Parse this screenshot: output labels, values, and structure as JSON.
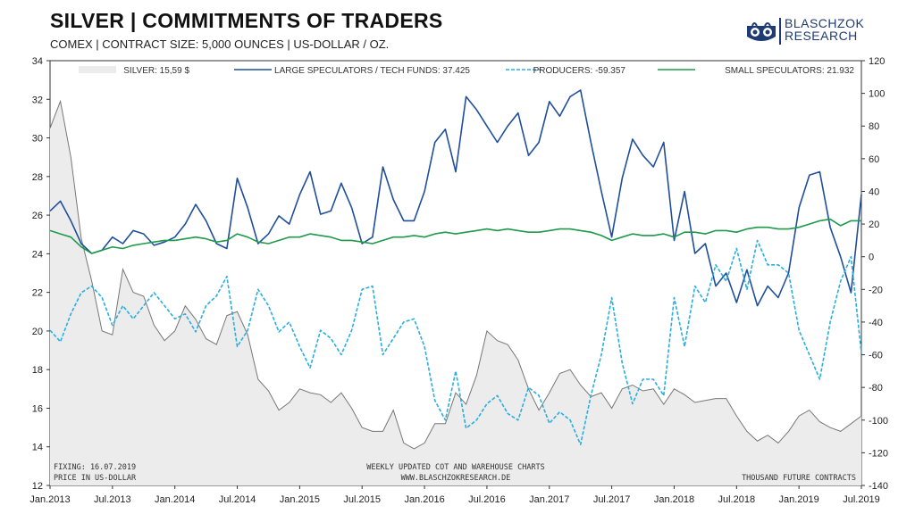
{
  "header": {
    "title": "SILVER | COMMITMENTS OF TRADERS",
    "subtitle": "COMEX | CONTRACT SIZE: 5,000 OUNCES | US-DOLLAR / OZ."
  },
  "logo": {
    "line1": "BLASCHZOK",
    "line2": "RESEARCH",
    "icon": "lion-crest-icon"
  },
  "notes": {
    "fixing": "FIXING: 16.07.2019",
    "price_unit": "PRICE IN US-DOLLAR",
    "weekly": "WEEKLY UPDATED COT AND WAREHOUSE CHARTS",
    "website": "WWW.BLASCHZOKRESEARCH.DE",
    "contracts": "THOUSAND FUTURE CONTRACTS"
  },
  "chart_data": {
    "type": "line",
    "legend_position": "top",
    "grid": false,
    "x_labels": [
      "Jan.2013",
      "Jul.2013",
      "Jan.2014",
      "Jul.2014",
      "Jan.2015",
      "Jul.2015",
      "Jan.2016",
      "Jul.2016",
      "Jan.2017",
      "Jul.2017",
      "Jan.2018",
      "Jul.2018",
      "Jan.2019",
      "Jul.2019"
    ],
    "x_range": [
      "2013-01",
      "2019-07"
    ],
    "y_left": {
      "range": [
        12,
        34
      ],
      "ticks": [
        12,
        14,
        16,
        18,
        20,
        22,
        24,
        26,
        28,
        30,
        32,
        34
      ]
    },
    "y_right": {
      "range": [
        -140,
        120
      ],
      "ticks": [
        -140,
        -120,
        -100,
        -80,
        -60,
        -40,
        -20,
        0,
        20,
        40,
        60,
        80,
        100,
        120
      ]
    },
    "series": [
      {
        "name": "SILVER: 15,59 $",
        "axis": "left",
        "style": "area",
        "color": "#777777",
        "fill": "#ececec",
        "x": [
          "2013-01",
          "2013-02",
          "2013-03",
          "2013-04",
          "2013-05",
          "2013-06",
          "2013-07",
          "2013-08",
          "2013-09",
          "2013-10",
          "2013-11",
          "2013-12",
          "2014-01",
          "2014-02",
          "2014-03",
          "2014-04",
          "2014-05",
          "2014-06",
          "2014-07",
          "2014-08",
          "2014-09",
          "2014-10",
          "2014-11",
          "2014-12",
          "2015-01",
          "2015-02",
          "2015-03",
          "2015-04",
          "2015-05",
          "2015-06",
          "2015-07",
          "2015-08",
          "2015-09",
          "2015-10",
          "2015-11",
          "2015-12",
          "2016-01",
          "2016-02",
          "2016-03",
          "2016-04",
          "2016-05",
          "2016-06",
          "2016-07",
          "2016-08",
          "2016-09",
          "2016-10",
          "2016-11",
          "2016-12",
          "2017-01",
          "2017-02",
          "2017-03",
          "2017-04",
          "2017-05",
          "2017-06",
          "2017-07",
          "2017-08",
          "2017-09",
          "2017-10",
          "2017-11",
          "2017-12",
          "2018-01",
          "2018-02",
          "2018-03",
          "2018-04",
          "2018-05",
          "2018-06",
          "2018-07",
          "2018-08",
          "2018-09",
          "2018-10",
          "2018-11",
          "2018-12",
          "2019-01",
          "2019-02",
          "2019-03",
          "2019-04",
          "2019-05",
          "2019-06",
          "2019-07"
        ],
        "values": [
          30.5,
          31.9,
          29.0,
          24.8,
          22.6,
          20.0,
          19.8,
          23.2,
          22.0,
          21.8,
          20.3,
          19.5,
          20.0,
          21.3,
          20.6,
          19.6,
          19.3,
          20.8,
          21.0,
          19.8,
          17.5,
          16.9,
          15.9,
          16.3,
          17.0,
          16.8,
          16.7,
          16.3,
          16.8,
          16.0,
          15.0,
          14.8,
          14.8,
          15.9,
          14.2,
          13.9,
          14.2,
          15.2,
          15.2,
          16.8,
          16.2,
          17.7,
          20.0,
          19.5,
          19.3,
          18.5,
          17.0,
          15.9,
          16.8,
          17.8,
          18.0,
          17.2,
          16.6,
          16.8,
          16.0,
          17.0,
          17.2,
          16.9,
          17.0,
          16.2,
          17.0,
          16.7,
          16.3,
          16.4,
          16.5,
          16.5,
          15.6,
          14.8,
          14.3,
          14.6,
          14.2,
          14.8,
          15.6,
          15.9,
          15.3,
          15.0,
          14.8,
          15.2,
          15.6
        ]
      },
      {
        "name": "LARGE SPECULATORS / TECH FUNDS: 37.425",
        "axis": "right",
        "style": "solid",
        "color": "#1f4e9c",
        "x": [
          "2013-01",
          "2013-02",
          "2013-03",
          "2013-04",
          "2013-05",
          "2013-06",
          "2013-07",
          "2013-08",
          "2013-09",
          "2013-10",
          "2013-11",
          "2013-12",
          "2014-01",
          "2014-02",
          "2014-03",
          "2014-04",
          "2014-05",
          "2014-06",
          "2014-07",
          "2014-08",
          "2014-09",
          "2014-10",
          "2014-11",
          "2014-12",
          "2015-01",
          "2015-02",
          "2015-03",
          "2015-04",
          "2015-05",
          "2015-06",
          "2015-07",
          "2015-08",
          "2015-09",
          "2015-10",
          "2015-11",
          "2015-12",
          "2016-01",
          "2016-02",
          "2016-03",
          "2016-04",
          "2016-05",
          "2016-06",
          "2016-07",
          "2016-08",
          "2016-09",
          "2016-10",
          "2016-11",
          "2016-12",
          "2017-01",
          "2017-02",
          "2017-03",
          "2017-04",
          "2017-05",
          "2017-06",
          "2017-07",
          "2017-08",
          "2017-09",
          "2017-10",
          "2017-11",
          "2017-12",
          "2018-01",
          "2018-02",
          "2018-03",
          "2018-04",
          "2018-05",
          "2018-06",
          "2018-07",
          "2018-08",
          "2018-09",
          "2018-10",
          "2018-11",
          "2018-12",
          "2019-01",
          "2019-02",
          "2019-03",
          "2019-04",
          "2019-05",
          "2019-06",
          "2019-07"
        ],
        "values": [
          28,
          34,
          22,
          8,
          2,
          4,
          12,
          8,
          16,
          14,
          7,
          9,
          12,
          20,
          32,
          22,
          8,
          5,
          48,
          30,
          8,
          14,
          25,
          20,
          38,
          52,
          26,
          28,
          45,
          30,
          8,
          12,
          55,
          35,
          22,
          22,
          40,
          70,
          78,
          52,
          98,
          90,
          80,
          70,
          80,
          88,
          62,
          70,
          95,
          86,
          98,
          102,
          70,
          40,
          12,
          48,
          72,
          62,
          55,
          70,
          10,
          40,
          2,
          8,
          -18,
          -10,
          -28,
          -8,
          -30,
          -18,
          -25,
          -10,
          30,
          50,
          52,
          18,
          0,
          -22,
          38
        ]
      },
      {
        "name": "PRODUCERS: -59.357",
        "axis": "right",
        "style": "dashed",
        "color": "#29aee0",
        "x": [
          "2013-01",
          "2013-02",
          "2013-03",
          "2013-04",
          "2013-05",
          "2013-06",
          "2013-07",
          "2013-08",
          "2013-09",
          "2013-10",
          "2013-11",
          "2013-12",
          "2014-01",
          "2014-02",
          "2014-03",
          "2014-04",
          "2014-05",
          "2014-06",
          "2014-07",
          "2014-08",
          "2014-09",
          "2014-10",
          "2014-11",
          "2014-12",
          "2015-01",
          "2015-02",
          "2015-03",
          "2015-04",
          "2015-05",
          "2015-06",
          "2015-07",
          "2015-08",
          "2015-09",
          "2015-10",
          "2015-11",
          "2015-12",
          "2016-01",
          "2016-02",
          "2016-03",
          "2016-04",
          "2016-05",
          "2016-06",
          "2016-07",
          "2016-08",
          "2016-09",
          "2016-10",
          "2016-11",
          "2016-12",
          "2017-01",
          "2017-02",
          "2017-03",
          "2017-04",
          "2017-05",
          "2017-06",
          "2017-07",
          "2017-08",
          "2017-09",
          "2017-10",
          "2017-11",
          "2017-12",
          "2018-01",
          "2018-02",
          "2018-03",
          "2018-04",
          "2018-05",
          "2018-06",
          "2018-07",
          "2018-08",
          "2018-09",
          "2018-10",
          "2018-11",
          "2018-12",
          "2019-01",
          "2019-02",
          "2019-03",
          "2019-04",
          "2019-05",
          "2019-06",
          "2019-07"
        ],
        "values": [
          -45,
          -52,
          -35,
          -22,
          -18,
          -25,
          -42,
          -30,
          -38,
          -30,
          -22,
          -30,
          -38,
          -35,
          -46,
          -30,
          -24,
          -12,
          -55,
          -45,
          -20,
          -30,
          -46,
          -40,
          -55,
          -68,
          -45,
          -50,
          -60,
          -45,
          -20,
          -18,
          -60,
          -50,
          -40,
          -38,
          -55,
          -88,
          -100,
          -70,
          -105,
          -100,
          -90,
          -85,
          -96,
          -100,
          -80,
          -85,
          -102,
          -95,
          -100,
          -115,
          -85,
          -60,
          -25,
          -65,
          -90,
          -75,
          -75,
          -85,
          -25,
          -55,
          -18,
          -28,
          -5,
          -15,
          5,
          -20,
          10,
          -5,
          -5,
          -10,
          -45,
          -60,
          -75,
          -40,
          -15,
          0,
          -59
        ]
      },
      {
        "name": "SMALL SPECULATORS: 21.932",
        "axis": "right",
        "style": "solid",
        "color": "#1e9a4a",
        "x": [
          "2013-01",
          "2013-02",
          "2013-03",
          "2013-04",
          "2013-05",
          "2013-06",
          "2013-07",
          "2013-08",
          "2013-09",
          "2013-10",
          "2013-11",
          "2013-12",
          "2014-01",
          "2014-02",
          "2014-03",
          "2014-04",
          "2014-05",
          "2014-06",
          "2014-07",
          "2014-08",
          "2014-09",
          "2014-10",
          "2014-11",
          "2014-12",
          "2015-01",
          "2015-02",
          "2015-03",
          "2015-04",
          "2015-05",
          "2015-06",
          "2015-07",
          "2015-08",
          "2015-09",
          "2015-10",
          "2015-11",
          "2015-12",
          "2016-01",
          "2016-02",
          "2016-03",
          "2016-04",
          "2016-05",
          "2016-06",
          "2016-07",
          "2016-08",
          "2016-09",
          "2016-10",
          "2016-11",
          "2016-12",
          "2017-01",
          "2017-02",
          "2017-03",
          "2017-04",
          "2017-05",
          "2017-06",
          "2017-07",
          "2017-08",
          "2017-09",
          "2017-10",
          "2017-11",
          "2017-12",
          "2018-01",
          "2018-02",
          "2018-03",
          "2018-04",
          "2018-05",
          "2018-06",
          "2018-07",
          "2018-08",
          "2018-09",
          "2018-10",
          "2018-11",
          "2018-12",
          "2019-01",
          "2019-02",
          "2019-03",
          "2019-04",
          "2019-05",
          "2019-06",
          "2019-07"
        ],
        "values": [
          16,
          14,
          12,
          6,
          2,
          4,
          6,
          5,
          7,
          8,
          9,
          10,
          10,
          11,
          12,
          11,
          9,
          10,
          14,
          12,
          9,
          8,
          10,
          12,
          12,
          14,
          13,
          12,
          10,
          10,
          9,
          8,
          10,
          12,
          12,
          13,
          12,
          14,
          15,
          14,
          15,
          16,
          17,
          16,
          17,
          16,
          15,
          15,
          16,
          17,
          17,
          16,
          15,
          13,
          10,
          12,
          14,
          13,
          13,
          14,
          12,
          15,
          15,
          14,
          16,
          16,
          15,
          17,
          18,
          18,
          17,
          17,
          18,
          20,
          22,
          23,
          19,
          22,
          22
        ]
      }
    ]
  },
  "colors": {
    "silver_line": "#777777",
    "silver_fill": "#ececec",
    "large_specs": "#1f4e9c",
    "producers": "#29aee0",
    "small_specs": "#1e9a4a",
    "logo": "#1f3b73"
  }
}
